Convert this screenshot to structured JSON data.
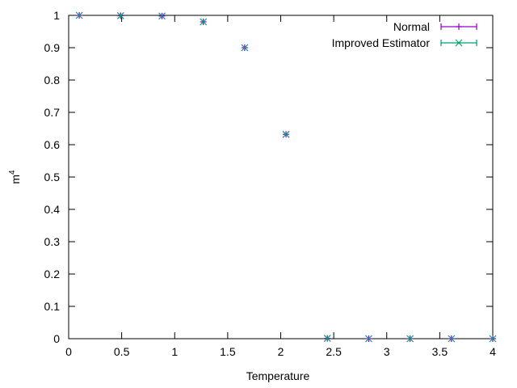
{
  "chart_data": {
    "type": "scatter",
    "xlabel": "Temperature",
    "ylabel": "m",
    "ylabel_superscript": "4",
    "xlim": [
      0,
      4
    ],
    "ylim": [
      0,
      1
    ],
    "x_ticks": [
      "0",
      "0.5",
      "1",
      "1.5",
      "2",
      "2.5",
      "3",
      "3.5",
      "4"
    ],
    "y_ticks": [
      "0",
      "0.1",
      "0.2",
      "0.3",
      "0.4",
      "0.5",
      "0.6",
      "0.7",
      "0.8",
      "0.9",
      "1"
    ],
    "grid": false,
    "legend_position": "top-right",
    "series": [
      {
        "name": "Normal",
        "color": "#9400d3",
        "marker": "plus",
        "points": [
          [
            0.1,
            1.0
          ],
          [
            0.49,
            0.999
          ],
          [
            0.88,
            0.998
          ],
          [
            1.27,
            0.98
          ],
          [
            1.66,
            0.9
          ],
          [
            2.05,
            0.632
          ],
          [
            2.44,
            0.001
          ],
          [
            2.83,
            0.0
          ],
          [
            3.22,
            0.0
          ],
          [
            3.61,
            0.0
          ],
          [
            4.0,
            0.0
          ]
        ]
      },
      {
        "name": "Improved Estimator",
        "color": "#009e73",
        "marker": "cross",
        "points": [
          [
            0.1,
            1.0
          ],
          [
            0.49,
            0.999
          ],
          [
            0.88,
            0.998
          ],
          [
            1.27,
            0.98
          ],
          [
            1.66,
            0.9
          ],
          [
            2.05,
            0.632
          ],
          [
            2.44,
            0.001
          ],
          [
            2.83,
            0.0
          ],
          [
            3.22,
            0.0
          ],
          [
            3.61,
            0.0
          ],
          [
            4.0,
            0.0
          ]
        ]
      }
    ]
  }
}
